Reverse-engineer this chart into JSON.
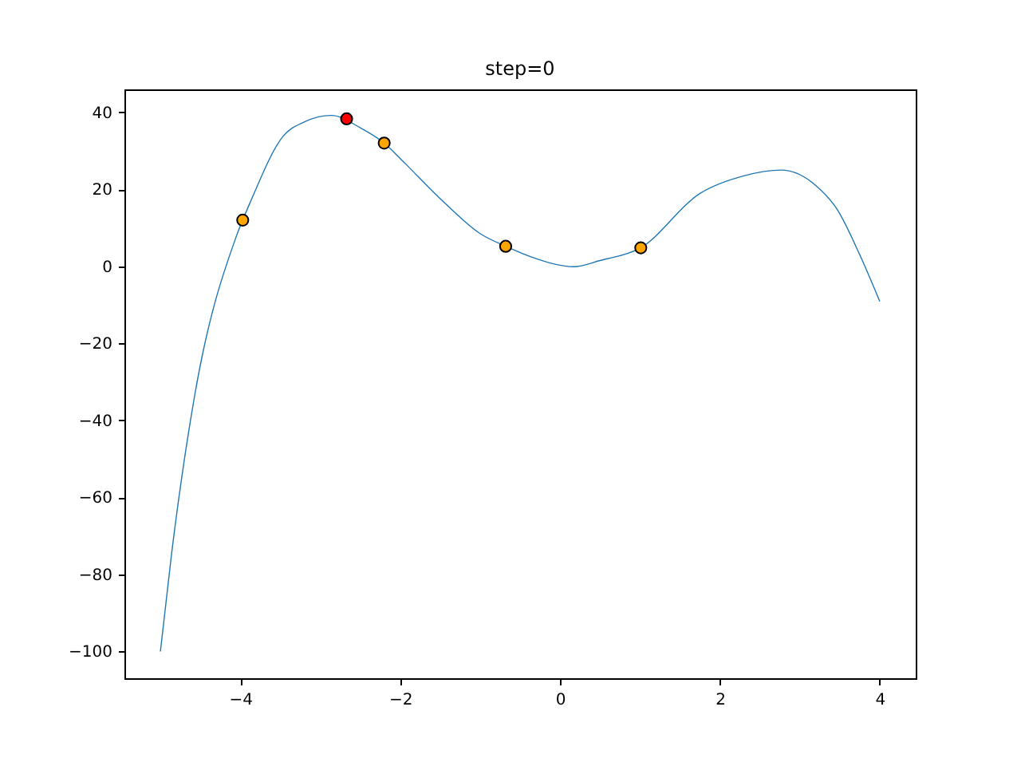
{
  "chart_data": {
    "type": "line",
    "title": "step=0",
    "xlim": [
      -5.45,
      4.45
    ],
    "ylim": [
      -106.95,
      45.95
    ],
    "xticks": [
      {
        "value": -4,
        "label": "−4"
      },
      {
        "value": -2,
        "label": "−2"
      },
      0,
      2,
      4
    ],
    "yticks": [
      {
        "value": -100,
        "label": "−100"
      },
      {
        "value": -80,
        "label": "−80"
      },
      {
        "value": -60,
        "label": "−60"
      },
      {
        "value": -40,
        "label": "−40"
      },
      {
        "value": -20,
        "label": "−20"
      },
      0,
      20,
      40
    ],
    "grid": false,
    "series": [
      {
        "color": "#1f77b4",
        "marker": "none",
        "x": [
          -5,
          -4.86,
          -4.57,
          -4.05,
          -3.86,
          -3.46,
          -3.2,
          -2.86,
          -2.5,
          -2.2,
          -2,
          -1.46,
          -1,
          -0.68,
          -0.3,
          0.17,
          0.5,
          1.01,
          1.74,
          2.3,
          2.77,
          3.2,
          3.47,
          3.75,
          4
        ],
        "values": [
          -100,
          -74.6,
          -33.4,
          7.8,
          17.4,
          33.9,
          37.5,
          39.2,
          36,
          32,
          28,
          16.8,
          8.5,
          5.2,
          2,
          -0.1,
          1.5,
          4.8,
          18.8,
          23.5,
          25,
          21,
          14.7,
          3,
          -9.1
        ]
      },
      {
        "type": "scatter",
        "marker": "circle",
        "x": [
          -3.97,
          -2.67,
          -2.2,
          -0.68,
          1.01
        ],
        "values": [
          12,
          38.3,
          32,
          5.2,
          4.8
        ],
        "colors": [
          "#ffa500",
          "#ff0000",
          "#ffa500",
          "#ffa500",
          "#ffa500"
        ]
      }
    ]
  }
}
